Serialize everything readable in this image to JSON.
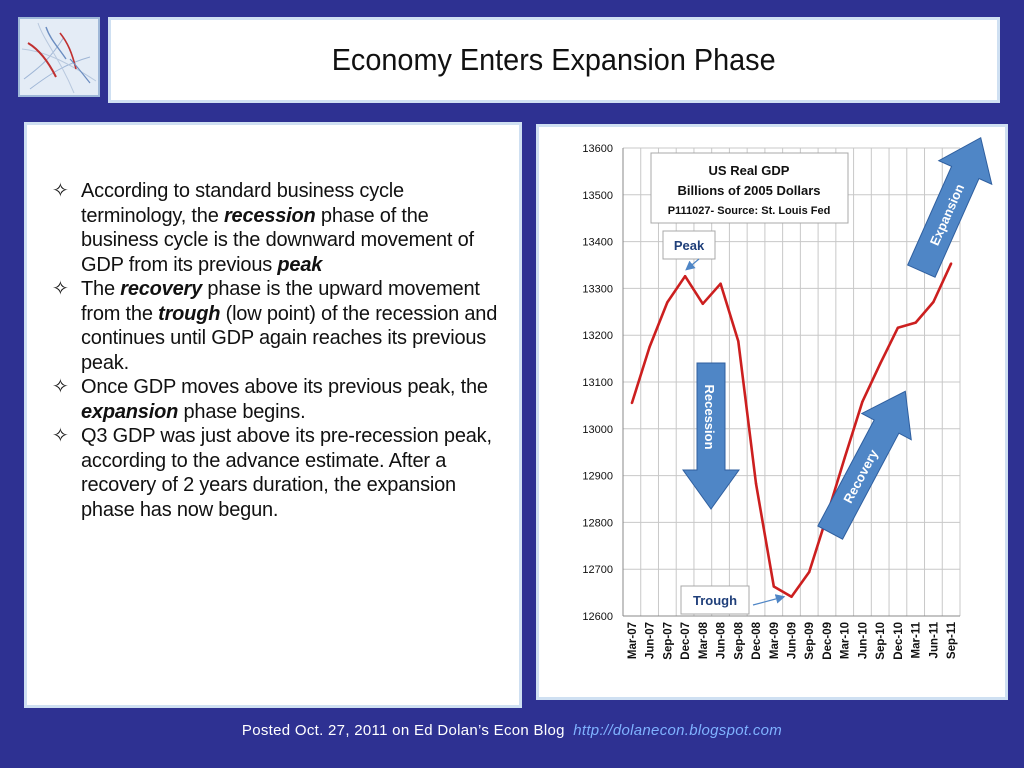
{
  "slide": {
    "title": "Economy Enters Expansion Phase",
    "footer_text": "Posted Oct. 27, 2011 on Ed Dolan’s Econ Blog",
    "footer_url": "http://dolanecon.blogspot.com"
  },
  "bullets": [
    [
      {
        "t": "According to standard business cycle terminology, the "
      },
      {
        "t": "recession",
        "s": "bi"
      },
      {
        "t": " phase of the business cycle is the downward movement of GDP from its previous "
      },
      {
        "t": "peak",
        "s": "bi"
      }
    ],
    [
      {
        "t": "The "
      },
      {
        "t": "recovery",
        "s": "bi"
      },
      {
        "t": " phase is the upward movement from the "
      },
      {
        "t": "trough",
        "s": "bi"
      },
      {
        "t": " (low point) of the recession and continues until GDP again reaches its previous peak."
      }
    ],
    [
      {
        "t": "Once GDP moves above its previous peak, the "
      },
      {
        "t": "expansion",
        "s": "bi"
      },
      {
        "t": " phase begins."
      }
    ],
    [
      {
        "t": "Q3 GDP was just above its pre-recession peak, according to the advance estimate. After a recovery of 2 years duration, the expansion phase has now begun."
      }
    ]
  ],
  "chart_data": {
    "type": "line",
    "title": "US Real GDP",
    "subtitle": "Billions of 2005  Dollars",
    "source": "P111027- Source: St. Louis Fed",
    "categories": [
      "Mar-07",
      "Jun-07",
      "Sep-07",
      "Dec-07",
      "Mar-08",
      "Jun-08",
      "Sep-08",
      "Dec-08",
      "Mar-09",
      "Jun-09",
      "Sep-09",
      "Dec-09",
      "Mar-10",
      "Jun-10",
      "Sep-10",
      "Dec-10",
      "Mar-11",
      "Jun-11",
      "Sep-11"
    ],
    "values": [
      13055,
      13175,
      13270,
      13326,
      13267,
      13310,
      13187,
      12883,
      12663,
      12641,
      12694,
      12814,
      12938,
      13058,
      13139,
      13216,
      13227,
      13271,
      13353
    ],
    "ylim": [
      12600,
      13600
    ],
    "yticks": [
      12600,
      12700,
      12800,
      12900,
      13000,
      13100,
      13200,
      13300,
      13400,
      13500,
      13600
    ],
    "grid": true,
    "line_color": "#cc1f1f",
    "annotations": {
      "peak": "Peak",
      "trough": "Trough",
      "recession": "Recession",
      "recovery": "Recovery",
      "expansion": "Expansion"
    },
    "arrow_color": "#4f86c6"
  }
}
